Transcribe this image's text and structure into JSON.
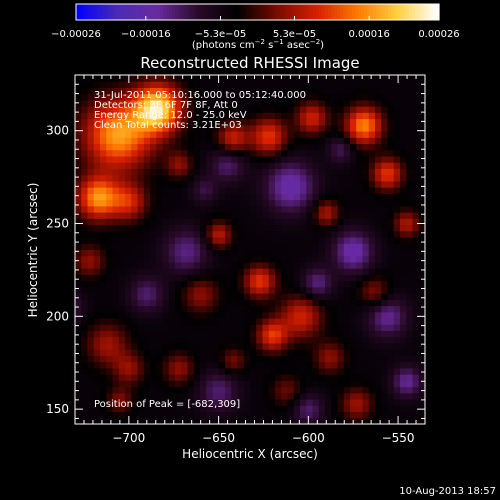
{
  "colorbar": {
    "ticks": [
      {
        "label": "−0.00026",
        "value": -0.00026
      },
      {
        "label": "−0.00016",
        "value": -0.00016
      },
      {
        "label": "−5.3e−05",
        "value": -5.3e-05
      },
      {
        "label": "5.3e−05",
        "value": 5.3e-05
      },
      {
        "label": "0.00016",
        "value": 0.00016
      },
      {
        "label": "0.00026",
        "value": 0.00026
      }
    ],
    "unit_label": "(photons cm",
    "unit_exp1": "−2",
    "unit_mid": " s",
    "unit_exp2": "−1",
    "unit_mid2": " asec",
    "unit_exp3": "−2",
    "unit_end": ")",
    "range": [
      -0.00026,
      0.00026
    ],
    "colors": [
      "#0000ff",
      "#4a2bb5",
      "#6a2aa0",
      "#2a0a2a",
      "#000000",
      "#7a0a00",
      "#d82000",
      "#ff7a00",
      "#ffd040",
      "#ffffff"
    ]
  },
  "header": {
    "line1": "31-Jul-2011 05:10:16.000 to 05:12:40.000",
    "line2": "Detectors: 3F 6F 7F 8F, Att 0",
    "line3": "Energy Range: 12.0 - 25.0 keV",
    "line4": "Clean    Total counts: 3.21E+03"
  },
  "footer": {
    "peak": "Position of Peak = [-682,309]",
    "date": "10-Aug-2013 18:57"
  },
  "chart_data": {
    "type": "heatmap",
    "title": "Reconstructed RHESSI Image",
    "xlabel": "Heliocentric X (arcsec)",
    "ylabel": "Heliocentric Y (arcsec)",
    "xlim": [
      -730,
      -535
    ],
    "ylim": [
      142,
      330
    ],
    "xticks": [
      -700,
      -650,
      -600,
      -550
    ],
    "yticks": [
      150,
      200,
      250,
      300
    ],
    "xtick_labels": [
      "−700",
      "−650",
      "−600",
      "−550"
    ],
    "ytick_labels": [
      "150",
      "200",
      "250",
      "300"
    ],
    "grid": false,
    "peak_position": [
      -682,
      309
    ],
    "blobs": [
      {
        "x": -684,
        "y": 312,
        "sigma": 9,
        "amp": 0.00026
      },
      {
        "x": -706,
        "y": 298,
        "sigma": 13,
        "amp": 0.00021
      },
      {
        "x": -717,
        "y": 264,
        "sigma": 8,
        "amp": 0.0002
      },
      {
        "x": -700,
        "y": 262,
        "sigma": 7,
        "amp": 0.00012
      },
      {
        "x": -642,
        "y": 296,
        "sigma": 6,
        "amp": 0.00012
      },
      {
        "x": -622,
        "y": 297,
        "sigma": 7,
        "amp": 0.00014
      },
      {
        "x": -598,
        "y": 307,
        "sigma": 6,
        "amp": 0.00012
      },
      {
        "x": -569,
        "y": 303,
        "sigma": 7,
        "amp": 0.00019
      },
      {
        "x": -556,
        "y": 277,
        "sigma": 6,
        "amp": 0.00014
      },
      {
        "x": -545,
        "y": 250,
        "sigma": 5,
        "amp": 0.0001
      },
      {
        "x": -590,
        "y": 256,
        "sigma": 5,
        "amp": 0.0001
      },
      {
        "x": -650,
        "y": 244,
        "sigma": 5,
        "amp": 0.00011
      },
      {
        "x": -627,
        "y": 219,
        "sigma": 6,
        "amp": 0.00014
      },
      {
        "x": -604,
        "y": 200,
        "sigma": 8,
        "amp": 0.00012
      },
      {
        "x": -620,
        "y": 190,
        "sigma": 6,
        "amp": 0.00014
      },
      {
        "x": -660,
        "y": 212,
        "sigma": 7,
        "amp": 8e-05
      },
      {
        "x": -722,
        "y": 230,
        "sigma": 6,
        "amp": 8e-05
      },
      {
        "x": -712,
        "y": 185,
        "sigma": 8,
        "amp": 9e-05
      },
      {
        "x": -700,
        "y": 172,
        "sigma": 6,
        "amp": 8e-05
      },
      {
        "x": -672,
        "y": 172,
        "sigma": 6,
        "amp": 8e-05
      },
      {
        "x": -642,
        "y": 176,
        "sigma": 5,
        "amp": 7e-05
      },
      {
        "x": -563,
        "y": 213,
        "sigma": 6,
        "amp": 8e-05
      },
      {
        "x": -588,
        "y": 178,
        "sigma": 6,
        "amp": 8e-05
      },
      {
        "x": -573,
        "y": 153,
        "sigma": 6,
        "amp": 9e-05
      },
      {
        "x": -612,
        "y": 160,
        "sigma": 6,
        "amp": 6e-05
      },
      {
        "x": -705,
        "y": 155,
        "sigma": 5,
        "amp": 7e-05
      },
      {
        "x": -672,
        "y": 282,
        "sigma": 5,
        "amp": 8e-05
      },
      {
        "x": -658,
        "y": 268,
        "sigma": 5,
        "amp": -6e-05
      },
      {
        "x": -668,
        "y": 235,
        "sigma": 9,
        "amp": -9e-05
      },
      {
        "x": -645,
        "y": 282,
        "sigma": 7,
        "amp": -8e-05
      },
      {
        "x": -610,
        "y": 270,
        "sigma": 10,
        "amp": -0.00012
      },
      {
        "x": -575,
        "y": 235,
        "sigma": 8,
        "amp": -0.00012
      },
      {
        "x": -556,
        "y": 200,
        "sigma": 8,
        "amp": -0.0001
      },
      {
        "x": -595,
        "y": 218,
        "sigma": 6,
        "amp": -9e-05
      },
      {
        "x": -735,
        "y": 205,
        "sigma": 6,
        "amp": -9e-05
      },
      {
        "x": -690,
        "y": 212,
        "sigma": 7,
        "amp": -8e-05
      },
      {
        "x": -650,
        "y": 160,
        "sigma": 8,
        "amp": -8e-05
      },
      {
        "x": -600,
        "y": 150,
        "sigma": 6,
        "amp": -8e-05
      },
      {
        "x": -545,
        "y": 165,
        "sigma": 6,
        "amp": -0.0001
      },
      {
        "x": -582,
        "y": 290,
        "sigma": 5,
        "amp": -7e-05
      }
    ]
  }
}
